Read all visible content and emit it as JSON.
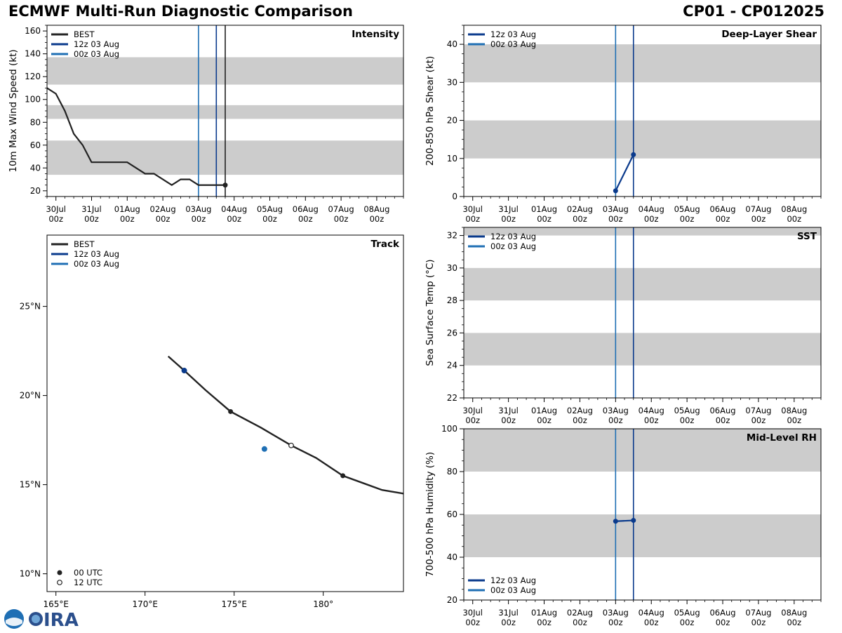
{
  "header": {
    "left": "ECMWF Multi-Run Diagnostic Comparison",
    "right": "CP01 - CP012025"
  },
  "colors": {
    "best": "#222222",
    "run12z": "#0a3a8c",
    "run00z": "#1f6fb4",
    "band": "#cccccc"
  },
  "time_axis": {
    "ticks": [
      {
        "day": 0,
        "top": "30Jul",
        "bottom": "00z"
      },
      {
        "day": 1,
        "top": "31Jul",
        "bottom": "00z"
      },
      {
        "day": 2,
        "top": "01Aug",
        "bottom": "00z"
      },
      {
        "day": 3,
        "top": "02Aug",
        "bottom": "00z"
      },
      {
        "day": 4,
        "top": "03Aug",
        "bottom": "00z"
      },
      {
        "day": 5,
        "top": "04Aug",
        "bottom": "00z"
      },
      {
        "day": 6,
        "top": "05Aug",
        "bottom": "00z"
      },
      {
        "day": 7,
        "top": "06Aug",
        "bottom": "00z"
      },
      {
        "day": 8,
        "top": "07Aug",
        "bottom": "00z"
      },
      {
        "day": 9,
        "top": "08Aug",
        "bottom": "00z"
      }
    ],
    "range_days": [
      -0.25,
      9.75
    ]
  },
  "legend_runs": [
    "12z 03 Aug",
    "00z 03 Aug"
  ],
  "legend_best": "BEST",
  "chart_data": [
    {
      "id": "intensity",
      "type": "line",
      "title": "Intensity",
      "ylabel": "10m Max Wind Speed (kt)",
      "ylim": [
        15,
        165
      ],
      "yticks": [
        20,
        40,
        60,
        80,
        100,
        120,
        140,
        160
      ],
      "bands": [
        [
          34,
          64
        ],
        [
          83,
          95
        ],
        [
          113,
          137
        ]
      ],
      "vlines": [
        {
          "day": 4.0,
          "series": "00z 03 Aug"
        },
        {
          "day": 4.5,
          "series": "12z 03 Aug"
        },
        {
          "day": 4.75,
          "series": "BEST"
        }
      ],
      "series": [
        {
          "name": "BEST",
          "days": [
            -0.25,
            0.0,
            0.25,
            0.5,
            0.75,
            1.0,
            1.25,
            1.5,
            1.75,
            2.0,
            2.25,
            2.5,
            2.75,
            3.0,
            3.25,
            3.5,
            3.75,
            4.0,
            4.25,
            4.5,
            4.75
          ],
          "values": [
            110,
            105,
            90,
            70,
            60,
            45,
            45,
            45,
            45,
            45,
            40,
            35,
            35,
            30,
            25,
            30,
            30,
            25,
            25,
            25,
            25
          ],
          "marker_last": true
        }
      ],
      "legend": [
        "BEST",
        "12z 03 Aug",
        "00z 03 Aug"
      ]
    },
    {
      "id": "shear",
      "type": "line",
      "title": "Deep-Layer Shear",
      "ylabel": "200-850 hPa Shear (kt)",
      "ylim": [
        0,
        45
      ],
      "yticks": [
        0,
        10,
        20,
        30,
        40
      ],
      "bands": [
        [
          10,
          20
        ],
        [
          30,
          40
        ]
      ],
      "vlines": [
        {
          "day": 4.0,
          "series": "00z 03 Aug"
        },
        {
          "day": 4.5,
          "series": "12z 03 Aug"
        }
      ],
      "series": [
        {
          "name": "12z 03 Aug",
          "days": [
            4.0,
            4.5
          ],
          "values": [
            1.5,
            11.0
          ]
        }
      ],
      "legend": [
        "12z 03 Aug",
        "00z 03 Aug"
      ]
    },
    {
      "id": "sst",
      "type": "line",
      "title": "SST",
      "ylabel": "Sea Surface Temp (°C)",
      "ylim": [
        22,
        32.5
      ],
      "yticks": [
        22,
        24,
        26,
        28,
        30,
        32
      ],
      "bands": [
        [
          24,
          26
        ],
        [
          28,
          30
        ],
        [
          32,
          34
        ]
      ],
      "vlines": [
        {
          "day": 4.0,
          "series": "00z 03 Aug"
        },
        {
          "day": 4.5,
          "series": "12z 03 Aug"
        }
      ],
      "series": [],
      "legend": [
        "12z 03 Aug",
        "00z 03 Aug"
      ]
    },
    {
      "id": "rh",
      "type": "line",
      "title": "Mid-Level RH",
      "ylabel": "700-500 hPa Humidity (%)",
      "ylim": [
        20,
        100
      ],
      "yticks": [
        20,
        40,
        60,
        80,
        100
      ],
      "bands": [
        [
          40,
          60
        ],
        [
          80,
          100
        ]
      ],
      "vlines": [
        {
          "day": 4.0,
          "series": "00z 03 Aug"
        },
        {
          "day": 4.5,
          "series": "12z 03 Aug"
        }
      ],
      "series": [
        {
          "name": "12z 03 Aug",
          "days": [
            4.0,
            4.5
          ],
          "values": [
            56.8,
            57.2
          ]
        }
      ],
      "legend": [
        "12z 03 Aug",
        "00z 03 Aug"
      ]
    },
    {
      "id": "track",
      "type": "scatter",
      "title": "Track",
      "xlim": [
        164.5,
        184.5
      ],
      "ylim": [
        9,
        29
      ],
      "xticks": [
        {
          "v": 165,
          "label": "165°E"
        },
        {
          "v": 170,
          "label": "170°E"
        },
        {
          "v": 175,
          "label": "175°E"
        },
        {
          "v": 180,
          "label": "180°"
        }
      ],
      "yticks": [
        {
          "v": 10,
          "label": "10°N"
        },
        {
          "v": 15,
          "label": "15°N"
        },
        {
          "v": 20,
          "label": "20°N"
        },
        {
          "v": 25,
          "label": "25°N"
        }
      ],
      "best_track": {
        "lon": [
          184.5,
          183.3,
          182.2,
          181.1,
          179.6,
          178.2,
          176.5,
          174.8,
          173.4,
          172.2,
          171.3
        ],
        "lat": [
          14.5,
          14.7,
          15.1,
          15.5,
          16.5,
          17.2,
          18.2,
          19.1,
          20.3,
          21.4,
          22.2
        ]
      },
      "markers_00utc": [
        {
          "lon": 181.1,
          "lat": 15.5
        },
        {
          "lon": 174.8,
          "lat": 19.1
        },
        {
          "lon": 172.2,
          "lat": 21.4
        }
      ],
      "markers_12utc": [
        {
          "lon": 178.2,
          "lat": 17.2
        }
      ],
      "run_points": [
        {
          "series": "12z 03 Aug",
          "lon": 172.2,
          "lat": 21.4
        },
        {
          "series": "00z 03 Aug",
          "lon": 176.7,
          "lat": 17.0
        }
      ],
      "legend": [
        "BEST",
        "12z 03 Aug",
        "00z 03 Aug"
      ],
      "marker_legend": [
        "00 UTC",
        "12 UTC"
      ]
    }
  ]
}
